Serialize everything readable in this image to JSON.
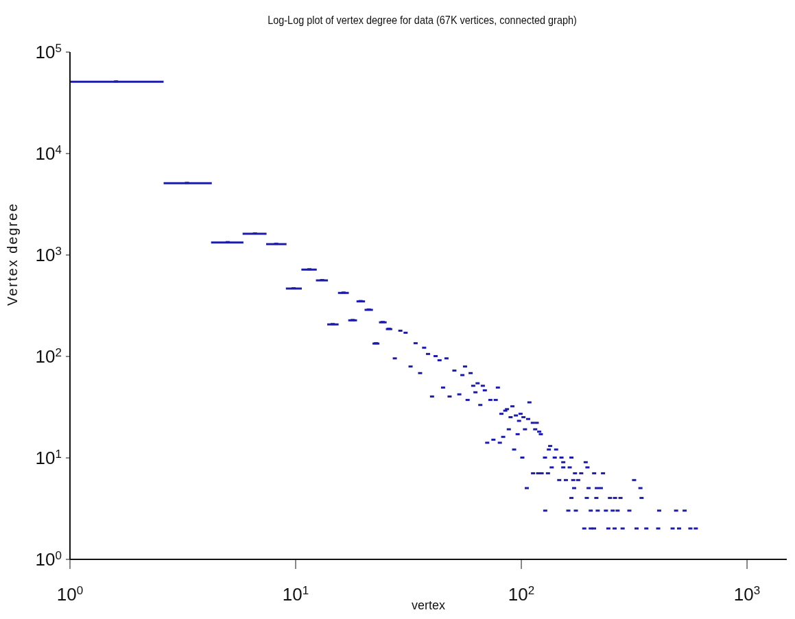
{
  "chart_data": {
    "type": "scatter",
    "title": "Log-Log plot of vertex degree for data (67K vertices, connected graph)",
    "xlabel": "vertex",
    "ylabel": "Vertex degree",
    "log": "xy",
    "marker": "square",
    "grid": false,
    "legend": false,
    "xlim": [
      1,
      1500
    ],
    "ylim": [
      1,
      100000
    ],
    "xticks": [
      {
        "value": 1,
        "label": "10$^{0}$"
      },
      {
        "value": 10,
        "label": "10$^{1}$"
      },
      {
        "value": 100,
        "label": "10$^{2}$"
      },
      {
        "value": 1000,
        "label": "10$^{3}$"
      }
    ],
    "yticks": [
      {
        "value": 1,
        "label": "10$^{0}$"
      },
      {
        "value": 10,
        "label": "10$^{1}$"
      },
      {
        "value": 100,
        "label": "10$^{2}$"
      },
      {
        "value": 1000,
        "label": "10$^{3}$"
      },
      {
        "value": 10000,
        "label": "10$^{4}$"
      },
      {
        "value": 100000,
        "label": "10$^{5}$"
      }
    ],
    "series": [
      {
        "color": "#1c1ca8",
        "x": [
          1.6,
          3.3,
          5,
          6.6,
          8.2,
          9.8,
          11.5,
          13.1,
          14.6,
          16.3,
          17.9,
          19.4,
          21.1,
          22.7,
          24.3,
          25.9,
          29.1,
          30.7,
          27.5,
          34,
          37.1,
          38.6,
          41.7,
          43.4,
          46.6,
          32.3,
          35.6,
          50.5,
          56.3,
          54.8,
          59.6,
          45,
          40.2,
          48.1,
          53.1,
          57.8,
          61.2,
          64,
          67.5,
          68.9,
          62.6,
          65.8,
          72.9,
          77,
          78.7,
          108.6,
          81.6,
          84.9,
          86.4,
          91.3,
          89.6,
          94.6,
          99.2,
          102.2,
          97.7,
          107.2,
          112.4,
          117,
          88,
          96.3,
          103.8,
          115.2,
          120,
          122,
          83.1,
          70.6,
          75.2,
          80.3,
          92.9,
          101,
          134.2,
          132.4,
          142.6,
          127.3,
          140.6,
          150.6,
          166.7,
          153.4,
          192.8,
          136.3,
          153.4,
          163.8,
          196.3,
          112.7,
          118.7,
          123,
          131.2,
          172.9,
          184.2,
          210.2,
          230.1,
          147.2,
          157.5,
          169.8,
          178.6,
          316,
          105.7,
          171.4,
          198.6,
          216,
          225,
          337,
          166.7,
          195,
          215,
          247,
          260,
          275,
          341,
          127.6,
          161.5,
          174.4,
          203,
          218,
          237,
          254,
          267,
          301,
          408,
          485,
          529,
          190,
          203,
          210,
          243,
          259,
          281,
          324,
          358,
          404,
          468,
          500,
          561,
          593
        ],
        "values": [
          51000,
          5100,
          1330,
          1620,
          1280,
          467,
          718,
          562,
          207,
          423,
          227,
          349,
          288,
          134,
          217,
          186,
          178,
          170,
          95,
          134,
          121,
          105,
          100,
          91,
          95,
          79,
          68,
          72,
          79,
          65,
          68,
          49,
          40,
          40,
          42,
          37,
          51,
          54,
          51,
          46,
          44,
          33,
          37,
          37,
          49,
          35,
          27,
          29,
          30,
          32,
          25,
          26,
          27,
          25,
          23,
          24,
          22,
          22,
          19,
          17,
          19,
          19,
          18,
          17,
          16,
          14,
          15,
          14,
          12,
          10,
          13,
          12,
          12,
          10,
          10,
          10,
          10,
          9,
          9,
          8,
          8,
          8,
          8,
          7,
          7,
          7,
          7,
          7,
          7,
          7,
          7,
          6,
          6,
          6,
          6,
          6,
          5,
          5,
          5,
          5,
          5,
          5,
          4,
          4,
          4,
          4,
          4,
          4,
          4,
          3,
          3,
          3,
          3,
          3,
          3,
          3,
          3,
          3,
          3,
          3,
          3,
          2,
          2,
          2,
          2,
          2,
          2,
          2,
          2,
          2,
          2,
          2,
          2,
          2
        ],
        "xerrors": [
          [
            1,
            2.6
          ],
          [
            2.6,
            4.25
          ],
          [
            4.22,
            5.87
          ],
          [
            5.82,
            7.43
          ],
          [
            7.4,
            9.11
          ],
          [
            9.05,
            10.65
          ],
          [
            10.6,
            12.4
          ],
          [
            12.3,
            13.9
          ],
          [
            13.8,
            15.5
          ],
          [
            15.4,
            17.2
          ],
          [
            17.1,
            18.7
          ],
          [
            18.6,
            20.3
          ],
          [
            20.2,
            22
          ],
          [
            21.9,
            23.5
          ],
          [
            23.4,
            25.3
          ],
          [
            25.1,
            26.8
          ],
          null,
          null,
          null,
          null,
          null,
          null,
          null,
          null,
          null,
          null,
          null,
          null,
          null,
          null,
          null,
          null,
          null,
          null,
          null,
          null,
          null,
          null,
          null,
          null,
          null,
          null,
          null,
          null,
          null,
          null,
          null,
          null,
          null,
          null,
          null,
          null,
          null,
          null,
          null,
          null,
          null,
          null,
          null,
          null,
          null,
          null,
          null,
          null,
          null,
          null,
          null,
          null,
          null,
          null,
          null,
          null,
          null,
          null,
          null,
          null,
          null,
          null,
          null,
          null,
          null,
          null,
          null,
          null,
          null,
          null,
          null,
          null,
          null,
          null,
          null,
          null,
          null,
          null,
          null,
          null,
          null,
          null,
          null,
          null,
          null,
          null,
          null,
          null,
          null,
          null,
          null,
          null,
          null,
          null,
          null,
          null,
          null,
          null,
          null,
          null,
          null,
          null,
          null,
          null,
          null,
          null,
          null,
          null,
          null,
          null,
          null,
          null,
          null,
          null,
          null,
          null,
          null,
          null
        ]
      }
    ]
  }
}
